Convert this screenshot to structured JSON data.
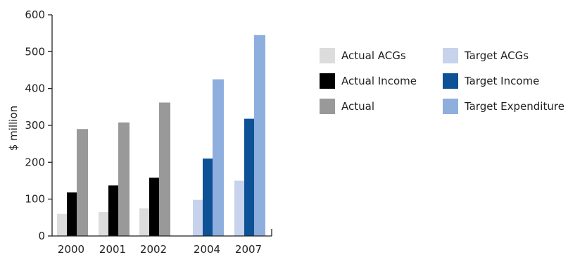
{
  "chart_data": {
    "type": "bar",
    "title": "",
    "xlabel": "",
    "ylabel": "$ million",
    "ylim": [
      0,
      600
    ],
    "yticks": [
      0,
      100,
      200,
      300,
      400,
      500,
      600
    ],
    "categories": [
      "2000",
      "2001",
      "2002",
      "2004",
      "2007"
    ],
    "bar_slots": [
      "ACGs",
      "Income",
      "Expenditure"
    ],
    "series": [
      {
        "name": "Actual ACGs",
        "slot": "ACGs",
        "color": "#dcdcdc",
        "values": [
          60,
          65,
          75,
          null,
          null
        ]
      },
      {
        "name": "Actual Income",
        "slot": "Income",
        "color": "#000000",
        "values": [
          118,
          137,
          158,
          null,
          null
        ]
      },
      {
        "name": "Actual",
        "slot": "Expenditure",
        "color": "#999999",
        "values": [
          290,
          308,
          362,
          null,
          null
        ]
      },
      {
        "name": "Target ACGs",
        "slot": "ACGs",
        "color": "#c7d3ec",
        "values": [
          null,
          null,
          null,
          98,
          150
        ]
      },
      {
        "name": "Target Income",
        "slot": "Income",
        "color": "#0d5196",
        "values": [
          null,
          null,
          null,
          210,
          318
        ]
      },
      {
        "name": "Target Expenditure",
        "slot": "Expenditure",
        "color": "#8eafdd",
        "values": [
          null,
          null,
          null,
          425,
          545
        ]
      }
    ],
    "grid": false
  },
  "legend": [
    {
      "label": "Actual ACGs",
      "color": "#dcdcdc"
    },
    {
      "label": "Target ACGs",
      "color": "#c7d3ec"
    },
    {
      "label": "Actual Income",
      "color": "#000000"
    },
    {
      "label": "Target Income",
      "color": "#0d5196"
    },
    {
      "label": "Actual",
      "color": "#999999"
    },
    {
      "label": "Target Expenditure",
      "color": "#8eafdd"
    }
  ]
}
